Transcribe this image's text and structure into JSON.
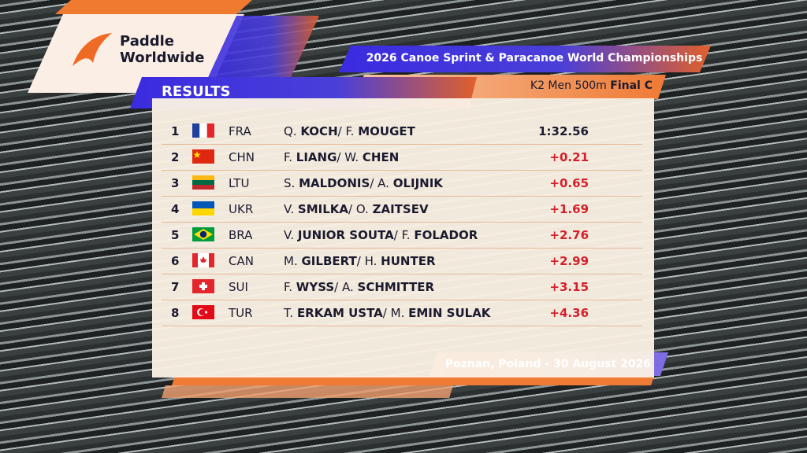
{
  "logo": {
    "line1": "Paddle",
    "line2": "Worldwide"
  },
  "event_title": "2026 Canoe Sprint & Paracanoe  World Championships",
  "section": "RESULTS",
  "race": {
    "event": "K2 Men 500m",
    "phase": "Final C"
  },
  "separator": "/",
  "rows": [
    {
      "rank": "1",
      "nation": "FRA",
      "athletes": [
        {
          "given": "Q.",
          "family": "KOCH"
        },
        {
          "given": "F.",
          "family": "MOUGET"
        }
      ],
      "result": "1:32.56"
    },
    {
      "rank": "2",
      "nation": "CHN",
      "athletes": [
        {
          "given": "F.",
          "family": "LIANG"
        },
        {
          "given": "W.",
          "family": "CHEN"
        }
      ],
      "result": "+0.21"
    },
    {
      "rank": "3",
      "nation": "LTU",
      "athletes": [
        {
          "given": "S.",
          "family": "MALDONIS"
        },
        {
          "given": "A.",
          "family": "OLIJNIK"
        }
      ],
      "result": "+0.65"
    },
    {
      "rank": "4",
      "nation": "UKR",
      "athletes": [
        {
          "given": "V.",
          "family": "SMILKA"
        },
        {
          "given": "O.",
          "family": "ZAITSEV"
        }
      ],
      "result": "+1.69"
    },
    {
      "rank": "5",
      "nation": "BRA",
      "athletes": [
        {
          "given": "V.",
          "family": "JUNIOR SOUTA"
        },
        {
          "given": "F.",
          "family": "FOLADOR"
        }
      ],
      "result": "+2.76"
    },
    {
      "rank": "6",
      "nation": "CAN",
      "athletes": [
        {
          "given": "M.",
          "family": "GILBERT"
        },
        {
          "given": "H.",
          "family": "HUNTER"
        }
      ],
      "result": "+2.99"
    },
    {
      "rank": "7",
      "nation": "SUI",
      "athletes": [
        {
          "given": "F.",
          "family": "WYSS"
        },
        {
          "given": "A.",
          "family": "SCHMITTER"
        }
      ],
      "result": "+3.15"
    },
    {
      "rank": "8",
      "nation": "TUR",
      "athletes": [
        {
          "given": "T.",
          "family": "ERKAM USTA"
        },
        {
          "given": "M.",
          "family": "EMIN SULAK"
        }
      ],
      "result": "+4.36"
    }
  ],
  "footer": "Poznan, Poland - 30 August 2026"
}
